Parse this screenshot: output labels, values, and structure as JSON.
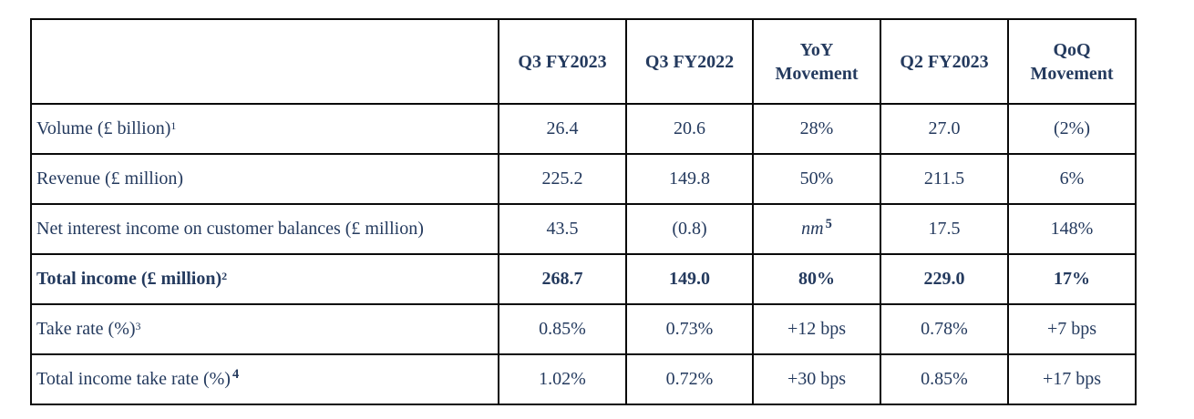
{
  "colors": {
    "text": "#243A5E",
    "border": "#0A0A0A",
    "background": "#FFFFFF"
  },
  "table": {
    "column_headers": [
      "Q3 FY2023",
      "Q3 FY2022",
      "YoY Movement",
      "Q2 FY2023",
      "QoQ Movement"
    ],
    "rows": [
      {
        "bold": false,
        "label": {
          "text": "Volume (£ billion)",
          "sup": "1",
          "sup_style": "small"
        },
        "cells": [
          {
            "text": "26.4"
          },
          {
            "text": "20.6"
          },
          {
            "text": "28%"
          },
          {
            "text": "27.0"
          },
          {
            "text": "(2%)"
          }
        ]
      },
      {
        "bold": false,
        "label": {
          "text": "Revenue (£ million)",
          "sup": "",
          "sup_style": "small"
        },
        "cells": [
          {
            "text": "225.2"
          },
          {
            "text": "149.8"
          },
          {
            "text": "50%"
          },
          {
            "text": "211.5"
          },
          {
            "text": "6%"
          }
        ]
      },
      {
        "bold": false,
        "label": {
          "text": "Net interest income on customer balances (£ million)",
          "sup": "",
          "sup_style": "small"
        },
        "cells": [
          {
            "text": "43.5"
          },
          {
            "text": "(0.8)"
          },
          {
            "text": "nm",
            "italic": true,
            "sup": "5",
            "sup_style": "big"
          },
          {
            "text": "17.5"
          },
          {
            "text": "148%"
          }
        ]
      },
      {
        "bold": true,
        "label": {
          "text": "Total income (£ million)",
          "sup": "2",
          "sup_style": "small"
        },
        "cells": [
          {
            "text": "268.7"
          },
          {
            "text": "149.0"
          },
          {
            "text": "80%"
          },
          {
            "text": "229.0"
          },
          {
            "text": "17%"
          }
        ]
      },
      {
        "bold": false,
        "label": {
          "text": "Take rate (%)",
          "sup": "3",
          "sup_style": "small"
        },
        "cells": [
          {
            "text": "0.85%"
          },
          {
            "text": "0.73%"
          },
          {
            "text": "+12 bps"
          },
          {
            "text": "0.78%"
          },
          {
            "text": "+7 bps"
          }
        ]
      },
      {
        "bold": false,
        "label": {
          "text": "Total income take rate (%)",
          "sup": "4",
          "sup_style": "big"
        },
        "cells": [
          {
            "text": "1.02%"
          },
          {
            "text": "0.72%"
          },
          {
            "text": "+30 bps"
          },
          {
            "text": "0.85%"
          },
          {
            "text": "+17 bps"
          }
        ]
      }
    ]
  }
}
